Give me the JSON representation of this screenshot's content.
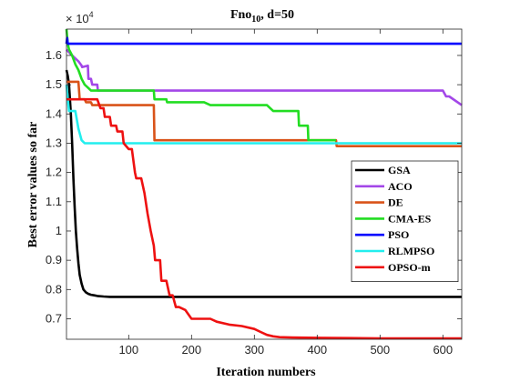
{
  "chart_data": {
    "type": "line",
    "title_main": "Fno",
    "title_sub": "10",
    "title_rest": ", d=50",
    "xlabel": "Iteration numbers",
    "ylabel": "Best error values so far",
    "y_exponent_base": "× 10",
    "y_exponent_power": "4",
    "xlim": [
      1,
      630
    ],
    "ylim": [
      0.63,
      1.69
    ],
    "xticks": [
      100,
      200,
      300,
      400,
      500,
      600
    ],
    "yticks": [
      0.7,
      0.8,
      0.9,
      1.0,
      1.1,
      1.2,
      1.3,
      1.4,
      1.5,
      1.6
    ],
    "ytick_labels": [
      "0.7",
      "0.8",
      "0.9",
      "1",
      "1.1",
      "1.2",
      "1.3",
      "1.4",
      "1.5",
      "1.6"
    ],
    "legend_position": "right",
    "series": [
      {
        "name": "GSA",
        "color": "#000000",
        "x": [
          1,
          3,
          5,
          8,
          10,
          12,
          14,
          16,
          18,
          20,
          22,
          25,
          28,
          32,
          36,
          40,
          45,
          50,
          60,
          70,
          80,
          100,
          150,
          200,
          300,
          400,
          500,
          630
        ],
        "y": [
          1.55,
          1.53,
          1.5,
          1.4,
          1.3,
          1.18,
          1.08,
          1.0,
          0.94,
          0.89,
          0.85,
          0.82,
          0.8,
          0.79,
          0.785,
          0.782,
          0.78,
          0.778,
          0.776,
          0.775,
          0.775,
          0.775,
          0.775,
          0.775,
          0.775,
          0.775,
          0.775,
          0.775
        ]
      },
      {
        "name": "ACO",
        "color": "#a347e8",
        "x": [
          1,
          10,
          20,
          25,
          26,
          35,
          36,
          40,
          42,
          50,
          51,
          410,
          420,
          500,
          530,
          560,
          590,
          600,
          605,
          610,
          630
        ],
        "y": [
          1.62,
          1.6,
          1.58,
          1.565,
          1.56,
          1.565,
          1.52,
          1.52,
          1.5,
          1.5,
          1.48,
          1.48,
          1.48,
          1.48,
          1.48,
          1.48,
          1.48,
          1.48,
          1.46,
          1.46,
          1.43
        ]
      },
      {
        "name": "DE",
        "color": "#d95319",
        "x": [
          1,
          20,
          22,
          30,
          32,
          40,
          42,
          50,
          52,
          60,
          62,
          80,
          100,
          120,
          140,
          141,
          150,
          200,
          300,
          400,
          430,
          431,
          500,
          630
        ],
        "y": [
          1.51,
          1.51,
          1.45,
          1.45,
          1.44,
          1.44,
          1.43,
          1.43,
          1.43,
          1.43,
          1.43,
          1.43,
          1.43,
          1.43,
          1.43,
          1.31,
          1.31,
          1.31,
          1.31,
          1.31,
          1.31,
          1.29,
          1.29,
          1.29
        ]
      },
      {
        "name": "CMA-ES",
        "color": "#22dd22",
        "x": [
          1,
          3,
          5,
          10,
          15,
          20,
          25,
          30,
          35,
          40,
          100,
          140,
          141,
          160,
          161,
          180,
          200,
          220,
          230,
          240,
          260,
          280,
          300,
          320,
          330,
          340,
          350,
          370,
          371,
          385,
          386,
          430
        ],
        "y": [
          1.69,
          1.64,
          1.62,
          1.6,
          1.57,
          1.55,
          1.52,
          1.5,
          1.49,
          1.48,
          1.48,
          1.48,
          1.45,
          1.45,
          1.44,
          1.44,
          1.44,
          1.44,
          1.43,
          1.43,
          1.43,
          1.43,
          1.43,
          1.43,
          1.41,
          1.41,
          1.41,
          1.41,
          1.36,
          1.36,
          1.31,
          1.31
        ]
      },
      {
        "name": "PSO",
        "color": "#0000ff",
        "x": [
          1,
          2,
          3,
          630
        ],
        "y": [
          1.64,
          1.66,
          1.64,
          1.64
        ]
      },
      {
        "name": "RLMPSO",
        "color": "#22eeee",
        "x": [
          1,
          3,
          5,
          8,
          10,
          15,
          20,
          25,
          30,
          100,
          200,
          300,
          400,
          500,
          630
        ],
        "y": [
          1.5,
          1.45,
          1.41,
          1.41,
          1.41,
          1.41,
          1.35,
          1.31,
          1.3,
          1.3,
          1.3,
          1.3,
          1.3,
          1.3,
          1.3
        ]
      },
      {
        "name": "OPSO-m",
        "color": "#ee1111",
        "x": [
          1,
          5,
          10,
          20,
          30,
          50,
          55,
          60,
          62,
          70,
          72,
          80,
          82,
          90,
          92,
          100,
          105,
          110,
          112,
          120,
          125,
          130,
          135,
          140,
          142,
          150,
          152,
          160,
          165,
          170,
          175,
          180,
          190,
          200,
          230,
          240,
          260,
          280,
          300,
          310,
          320,
          330,
          340,
          360,
          400,
          450,
          500,
          550,
          630
        ],
        "y": [
          1.45,
          1.45,
          1.45,
          1.45,
          1.45,
          1.45,
          1.42,
          1.42,
          1.39,
          1.39,
          1.36,
          1.36,
          1.34,
          1.34,
          1.3,
          1.28,
          1.28,
          1.2,
          1.18,
          1.18,
          1.13,
          1.06,
          1.0,
          0.95,
          0.9,
          0.9,
          0.83,
          0.83,
          0.78,
          0.78,
          0.74,
          0.74,
          0.73,
          0.7,
          0.7,
          0.69,
          0.68,
          0.675,
          0.665,
          0.655,
          0.645,
          0.64,
          0.637,
          0.636,
          0.635,
          0.634,
          0.633,
          0.633,
          0.633
        ]
      }
    ]
  }
}
